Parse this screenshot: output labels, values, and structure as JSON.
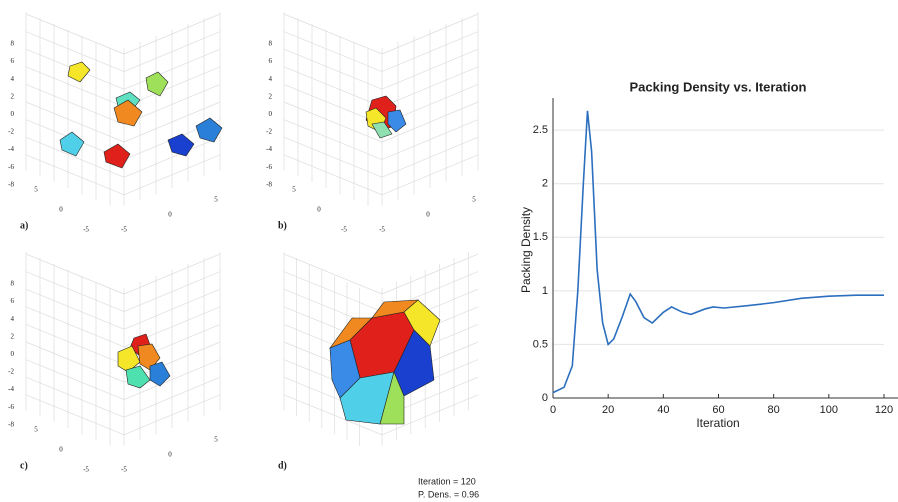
{
  "chart_data": {
    "type": "line",
    "title": "Packing Density vs. Iteration",
    "x_label": "Iteration",
    "y_label": "Packing Density",
    "x": [
      0,
      4,
      7,
      9,
      11,
      12.5,
      14,
      16,
      18,
      20,
      22,
      25,
      28,
      30,
      33,
      36,
      40,
      43,
      47,
      50,
      55,
      58,
      62,
      70,
      80,
      90,
      100,
      110,
      120
    ],
    "series": [
      {
        "color": "#2b6fbe",
        "values": [
          0.05,
          0.1,
          0.3,
          1.0,
          2.0,
          2.68,
          2.3,
          1.2,
          0.7,
          0.5,
          0.55,
          0.75,
          0.97,
          0.9,
          0.75,
          0.7,
          0.8,
          0.85,
          0.8,
          0.78,
          0.83,
          0.85,
          0.84,
          0.86,
          0.89,
          0.93,
          0.95,
          0.96,
          0.96
        ]
      }
    ],
    "xlim": [
      0,
      120
    ],
    "xticks": [
      0,
      20,
      40,
      60,
      80,
      100,
      120
    ],
    "ylim": [
      0,
      2.8
    ],
    "yticks": [
      0,
      0.5,
      1,
      1.5,
      2,
      2.5
    ],
    "grid": true
  },
  "panels": [
    {
      "label": "a)",
      "zticks": [
        8,
        6,
        4,
        2,
        0,
        -2,
        -4,
        -6,
        -8
      ],
      "xticks": [
        5,
        0,
        -5
      ],
      "yticks": [
        -5,
        0,
        5
      ]
    },
    {
      "label": "b)",
      "zticks": [
        8,
        6,
        4,
        2,
        0,
        -2,
        -4,
        -6,
        -8
      ],
      "xticks": [
        5,
        0,
        -5
      ],
      "yticks": [
        -5,
        0,
        5
      ]
    },
    {
      "label": "c)",
      "zticks": [
        8,
        6,
        4,
        2,
        0,
        -2,
        -4,
        -6,
        -8
      ],
      "xticks": [
        5,
        0,
        -5
      ],
      "yticks": [
        -5,
        0,
        5
      ]
    },
    {
      "label": "d)",
      "annotation": [
        "Iteration = 120",
        "P. Dens. = 0.96"
      ]
    }
  ]
}
